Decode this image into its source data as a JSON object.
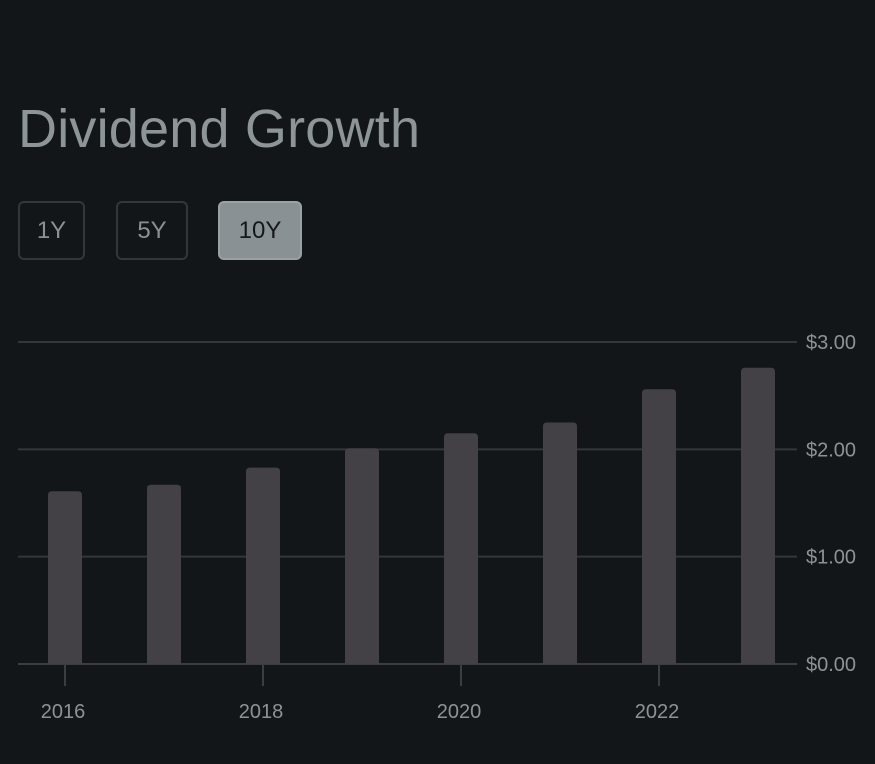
{
  "title": "Dividend Growth",
  "ranges": [
    {
      "label": "1Y",
      "active": false
    },
    {
      "label": "5Y",
      "active": false
    },
    {
      "label": "10Y",
      "active": true
    }
  ],
  "colors": {
    "background": "#131619",
    "bar": "#434146",
    "grid": "#33363a",
    "text": "#8d9394"
  },
  "chart_data": {
    "type": "bar",
    "title": "",
    "xlabel": "",
    "ylabel": "",
    "categories": [
      "2016",
      "2017",
      "2018",
      "2019",
      "2020",
      "2021",
      "2022",
      "2023"
    ],
    "values": [
      1.61,
      1.67,
      1.83,
      2.01,
      2.15,
      2.25,
      2.56,
      2.76
    ],
    "ylim": [
      0,
      3
    ],
    "y_ticks": [
      "$0.00",
      "$1.00",
      "$2.00",
      "$3.00"
    ],
    "y_tick_values": [
      0,
      1,
      2,
      3
    ],
    "x_tick_labels": [
      "2016",
      "2018",
      "2020",
      "2022"
    ],
    "y_axis_position": "right",
    "grid": true,
    "legend": "none"
  }
}
